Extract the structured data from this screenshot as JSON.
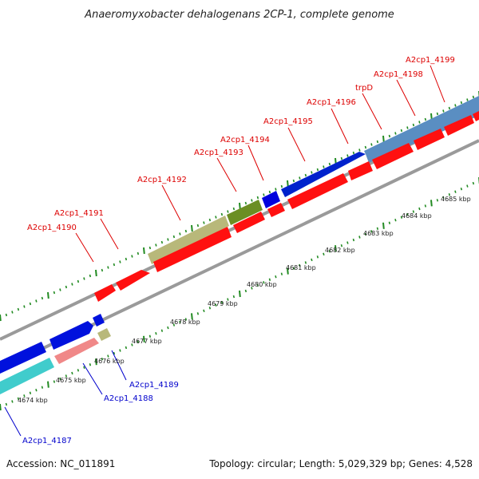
{
  "title": "Anaeromyxobacter dehalogenans 2CP-1, complete genome",
  "footer": {
    "accession": "Accession: NC_011891",
    "summary": "Topology: circular; Length: 5,029,329 bp; Genes: 4,528"
  },
  "colors": {
    "forward_label": "#dd0000",
    "reverse_label": "#0000cc",
    "backbone": "#888888",
    "tick": "#228b22"
  },
  "genes_top": [
    "A2cp1_4190",
    "A2cp1_4191",
    "A2cp1_4192",
    "A2cp1_4193",
    "A2cp1_4194",
    "A2cp1_4195",
    "A2cp1_4196",
    "trpD",
    "A2cp1_4198",
    "A2cp1_4199"
  ],
  "genes_bottom": [
    "A2cp1_4187",
    "A2cp1_4188",
    "A2cp1_4189"
  ],
  "scale_labels": [
    "4674 kbp",
    "4675 kbp",
    "4676 kbp",
    "4677 kbp",
    "4678 kbp",
    "4679 kbp",
    "4680 kbp",
    "4681 kbp",
    "4682 kbp",
    "4683 kbp",
    "4684 kbp",
    "4685 kbp"
  ]
}
